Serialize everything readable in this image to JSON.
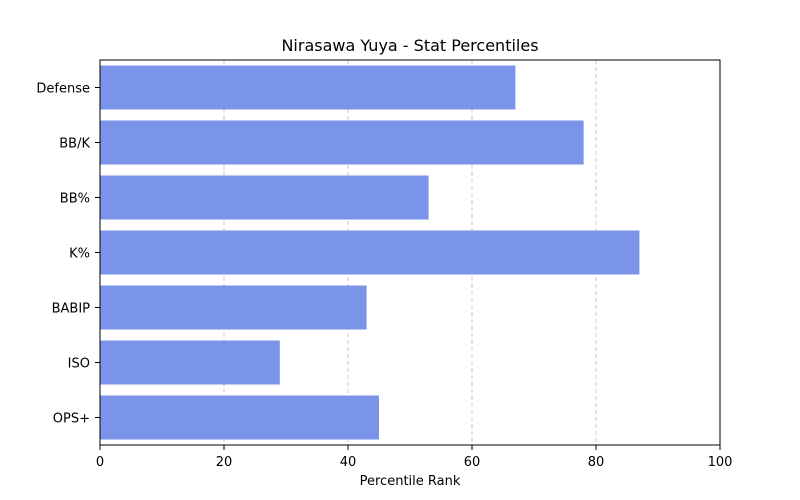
{
  "chart_data": {
    "type": "bar",
    "orientation": "horizontal",
    "title": "Nirasawa Yuya - Stat Percentiles",
    "xlabel": "Percentile Rank",
    "ylabel": "",
    "xlim": [
      0,
      100
    ],
    "xticks": [
      0,
      20,
      40,
      60,
      80,
      100
    ],
    "grid": "x-dashed",
    "bar_color": "#7994e9",
    "categories": [
      "Defense",
      "BB/K",
      "BB%",
      "K%",
      "BABIP",
      "ISO",
      "OPS+"
    ],
    "values": [
      67,
      78,
      53,
      87,
      43,
      29,
      45
    ]
  }
}
